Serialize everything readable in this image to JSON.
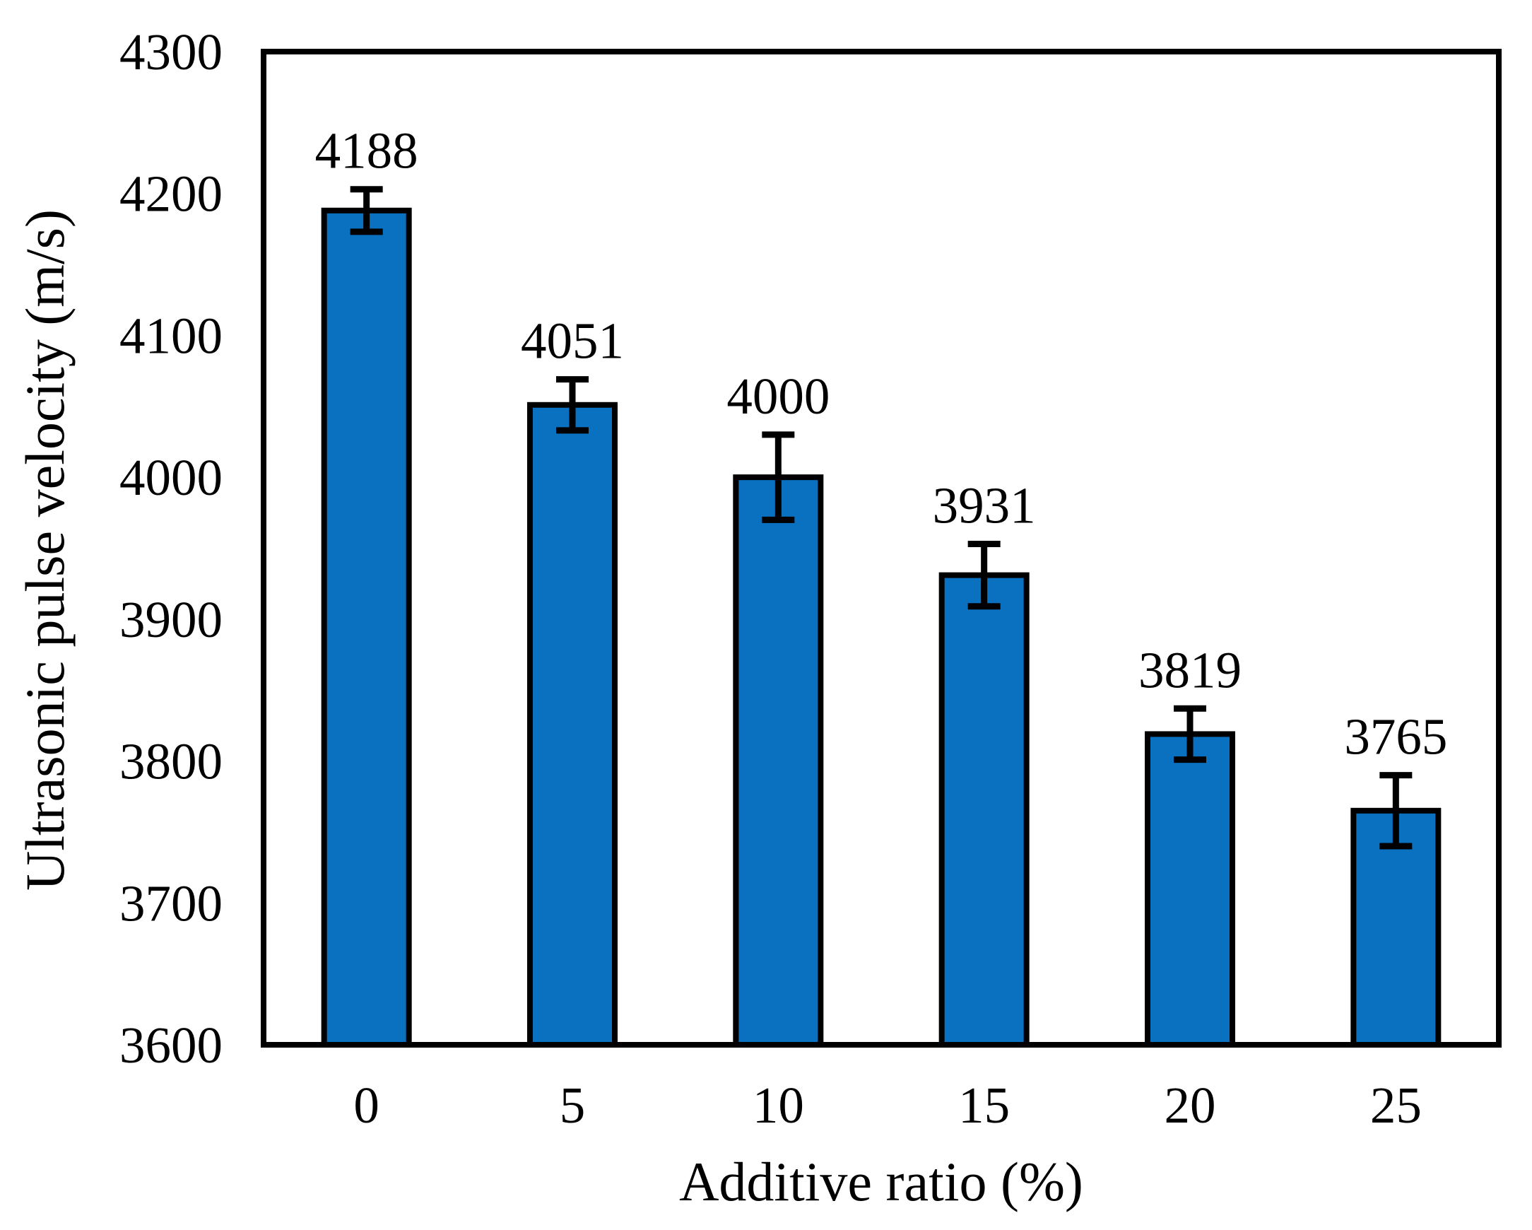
{
  "figure": {
    "background_color": "#ffffff"
  },
  "chart_data": {
    "type": "bar",
    "title": "",
    "xlabel": "Additive ratio (%)",
    "ylabel": "Ultrasonic pulse velocity (m/s)",
    "categories": [
      "0",
      "5",
      "10",
      "15",
      "20",
      "25"
    ],
    "values": [
      4188,
      4051,
      4000,
      3931,
      3819,
      3765
    ],
    "data_labels": [
      "4188",
      "4051",
      "4000",
      "3931",
      "3819",
      "3765"
    ],
    "error_bars": [
      15,
      18,
      30,
      22,
      18,
      25
    ],
    "ylim": [
      3600,
      4300
    ],
    "ytick_step": 100,
    "ytick_labels": [
      "3600",
      "3700",
      "3800",
      "3900",
      "4000",
      "4100",
      "4200",
      "4300"
    ],
    "grid": false,
    "legend_position": "none",
    "bar_color": "#0a71c0",
    "bar_border_color": "#000000",
    "error_bar_color": "#000000",
    "axis_color": "#000000",
    "text_color": "#000000"
  }
}
